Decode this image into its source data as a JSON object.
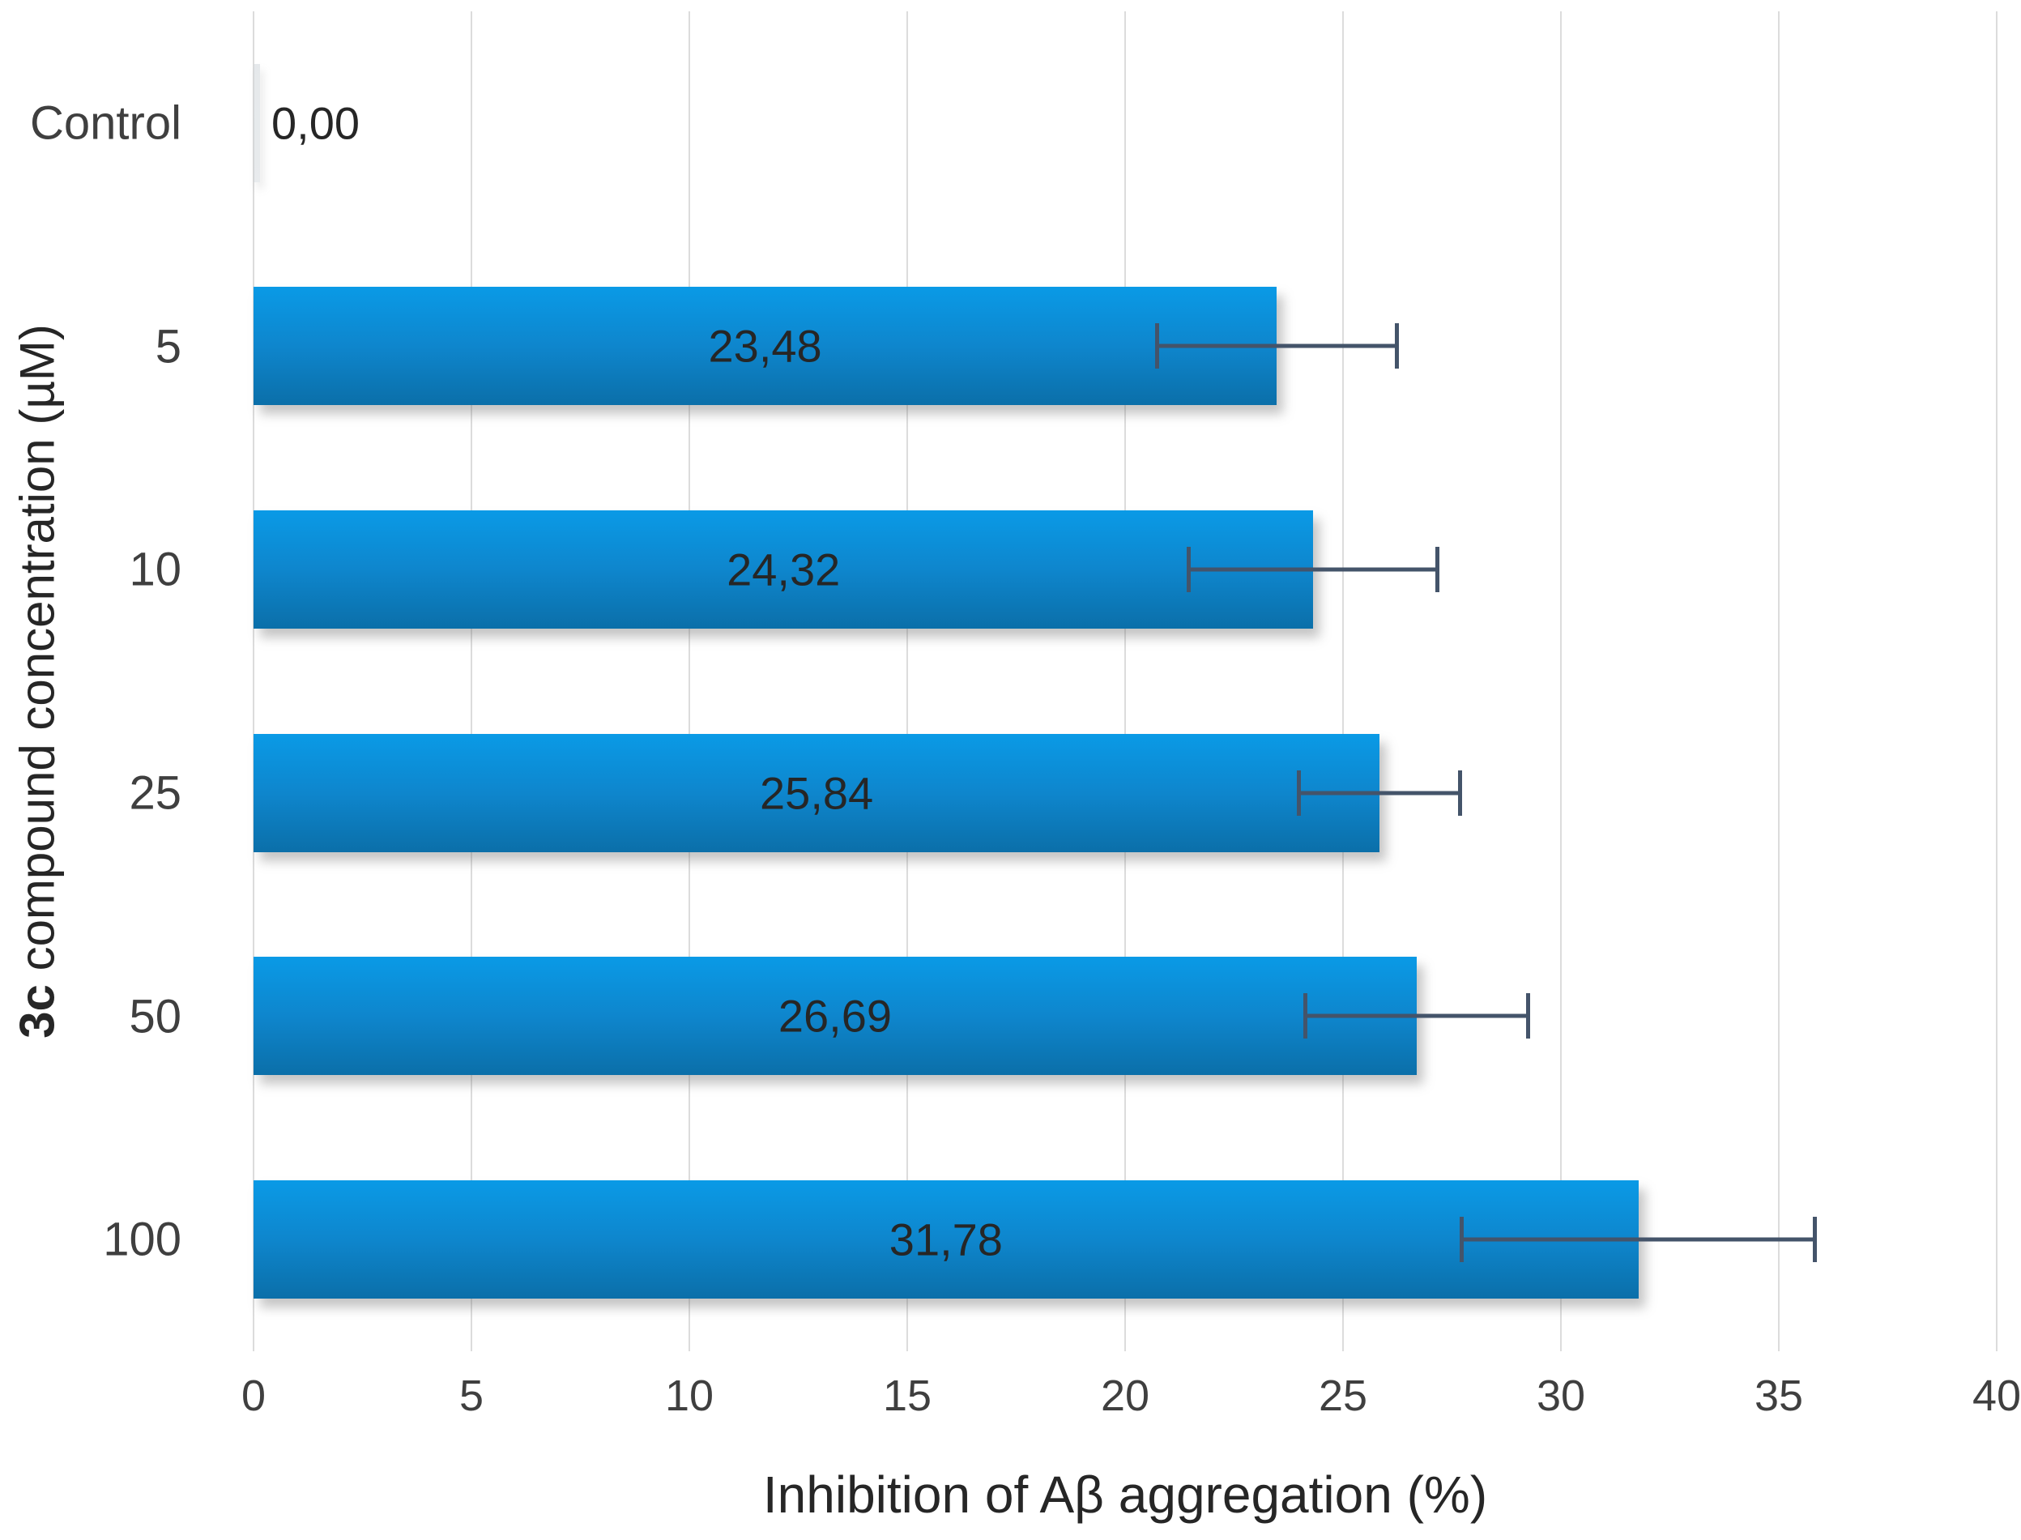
{
  "chart_data": {
    "type": "bar",
    "orientation": "horizontal",
    "title": "",
    "categories": [
      "Control",
      "5",
      "10",
      "25",
      "50",
      "100"
    ],
    "values": [
      0,
      23.48,
      24.32,
      25.84,
      26.69,
      31.78
    ],
    "value_labels": [
      "0,00",
      "23,48",
      "24,32",
      "25,84",
      "26,69",
      "31,78"
    ],
    "errors": [
      0,
      2.8,
      2.9,
      1.9,
      2.6,
      4.1
    ],
    "xlabel": "Inhibition of Aβ aggregation (%)",
    "ylabel_bold": "3c",
    "ylabel_rest": " compound concentration (µM)",
    "xlim": [
      0,
      40
    ],
    "xticks": [
      0,
      5,
      10,
      15,
      20,
      25,
      30,
      35,
      40
    ],
    "grid": true,
    "legend": "none",
    "bar_color_top": "#0a9ae6",
    "bar_color_bottom": "#0b6fa9",
    "error_bar_color": "#44546a",
    "gridline_color": "#dcdcdc",
    "label_color": "#3f3f3f"
  }
}
